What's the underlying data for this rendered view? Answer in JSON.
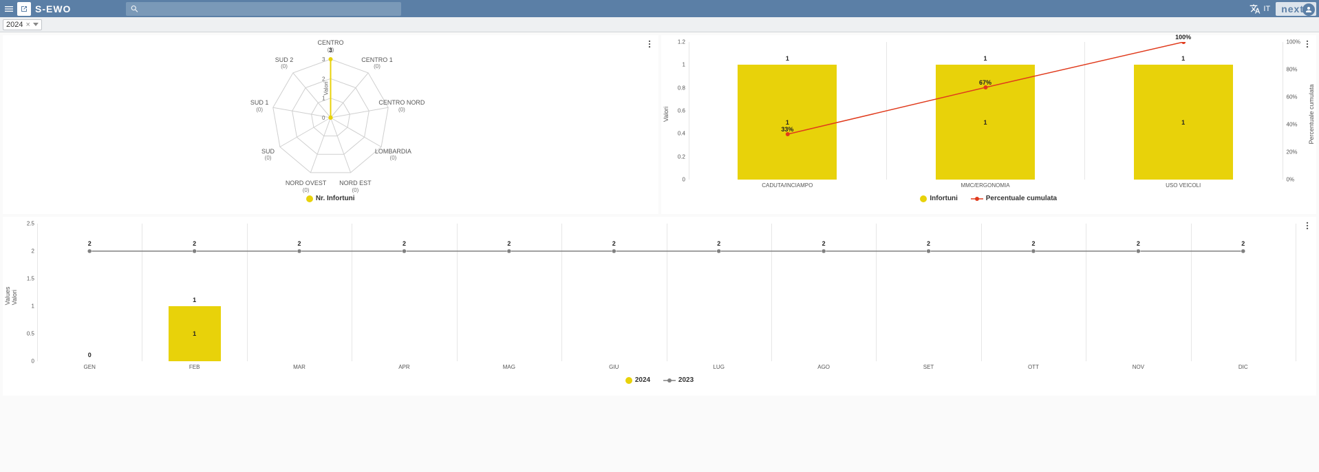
{
  "header": {
    "app_title": "S-EWO",
    "search_placeholder": "",
    "lang_code": "IT",
    "next_label": "next"
  },
  "filter": {
    "year_chip": "2024"
  },
  "radar": {
    "legend": "Nr. Infortuni",
    "center_axis_label": "Valori",
    "ticks": [
      "0",
      "1",
      "2",
      "3"
    ],
    "series_color": "#e8d20a",
    "grid_color": "#cfcfcf",
    "axes": [
      {
        "label": "CENTRO",
        "sub": "(3)",
        "value": 3
      },
      {
        "label": "CENTRO 1",
        "sub": "(0)",
        "value": 0
      },
      {
        "label": "CENTRO NORD",
        "sub": "(0)",
        "value": 0
      },
      {
        "label": "LOMBARDIA",
        "sub": "(0)",
        "value": 0
      },
      {
        "label": "NORD EST",
        "sub": "(0)",
        "value": 0
      },
      {
        "label": "NORD OVEST",
        "sub": "(0)",
        "value": 0
      },
      {
        "label": "SUD",
        "sub": "(0)",
        "value": 0
      },
      {
        "label": "SUD 1",
        "sub": "(0)",
        "value": 0
      },
      {
        "label": "SUD 2",
        "sub": "(0)",
        "value": 0
      }
    ]
  },
  "pareto": {
    "y_left_label": "Valori",
    "y_right_label": "Percentuale cumulata",
    "y_left_max": 1.2,
    "y_left_ticks": [
      "0",
      "0.2",
      "0.4",
      "0.6",
      "0.8",
      "1",
      "1.2"
    ],
    "y_right_ticks": [
      "0%",
      "20%",
      "40%",
      "60%",
      "80%",
      "100%"
    ],
    "bar_color": "#e8d20a",
    "line_color": "#e03a1c",
    "grid_color": "#e6e6e6",
    "legend_bar": "Infortuni",
    "legend_line": "Percentuale cumulata",
    "categories": [
      {
        "label": "CADUTA/INCIAMPO",
        "value": 1,
        "cum_pct": 33,
        "cum_label": "33%"
      },
      {
        "label": "MMC/ERGONOMIA",
        "value": 1,
        "cum_pct": 67,
        "cum_label": "67%"
      },
      {
        "label": "USO VEICOLI",
        "value": 1,
        "cum_pct": 100,
        "cum_label": "100%"
      }
    ]
  },
  "monthly": {
    "y_label_1": "Values",
    "y_label_2": "Valori",
    "y_max": 2.5,
    "y_ticks": [
      "0",
      "0.5",
      "1",
      "1.5",
      "2",
      "2.5"
    ],
    "legend_bar": "2024",
    "legend_line": "2023",
    "bar_color": "#e8d20a",
    "line_color": "#808080",
    "grid_color": "#e6e6e6",
    "months": [
      {
        "label": "GEN",
        "bar": 0,
        "bar_label": "0",
        "line": 2
      },
      {
        "label": "FEB",
        "bar": 1,
        "bar_label": "1",
        "line": 2
      },
      {
        "label": "MAR",
        "bar": null,
        "bar_label": "",
        "line": 2
      },
      {
        "label": "APR",
        "bar": null,
        "bar_label": "",
        "line": 2
      },
      {
        "label": "MAG",
        "bar": null,
        "bar_label": "",
        "line": 2
      },
      {
        "label": "GIU",
        "bar": null,
        "bar_label": "",
        "line": 2
      },
      {
        "label": "LUG",
        "bar": null,
        "bar_label": "",
        "line": 2
      },
      {
        "label": "AGO",
        "bar": null,
        "bar_label": "",
        "line": 2
      },
      {
        "label": "SET",
        "bar": null,
        "bar_label": "",
        "line": 2
      },
      {
        "label": "OTT",
        "bar": null,
        "bar_label": "",
        "line": 2
      },
      {
        "label": "NOV",
        "bar": null,
        "bar_label": "",
        "line": 2
      },
      {
        "label": "DIC",
        "bar": null,
        "bar_label": "",
        "line": 2
      }
    ]
  }
}
